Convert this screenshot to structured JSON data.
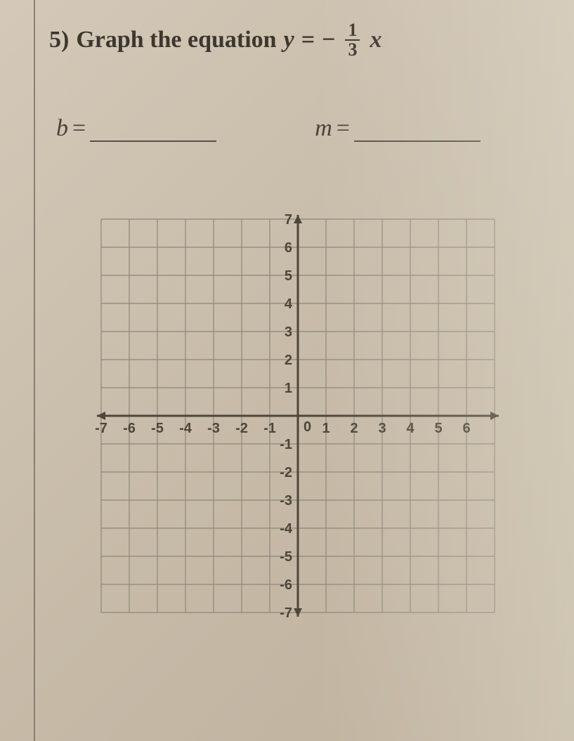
{
  "question": {
    "number": "5)",
    "prompt_prefix": "Graph the equation",
    "lhs": "y",
    "eq": "=",
    "neg": "−",
    "frac_num": "1",
    "frac_den": "3",
    "var": "x"
  },
  "blanks": {
    "b_label": "b",
    "b_eq": "=",
    "m_label": "m",
    "m_eq": "="
  },
  "graph": {
    "xmin": -7,
    "xmax": 7,
    "ymin": -7,
    "ymax": 7,
    "cell": 40,
    "xticks": [
      -7,
      -6,
      -5,
      -4,
      -3,
      -2,
      -1,
      0,
      1,
      2,
      3,
      4,
      5,
      6
    ],
    "yticks_pos": [
      1,
      2,
      3,
      4,
      5,
      6,
      7
    ],
    "yticks_neg": [
      -1,
      -2,
      -3,
      -4,
      -5,
      -6,
      -7
    ],
    "grid_color": "#8f8878",
    "axis_color": "#4d4639",
    "label_fontsize": 20
  }
}
